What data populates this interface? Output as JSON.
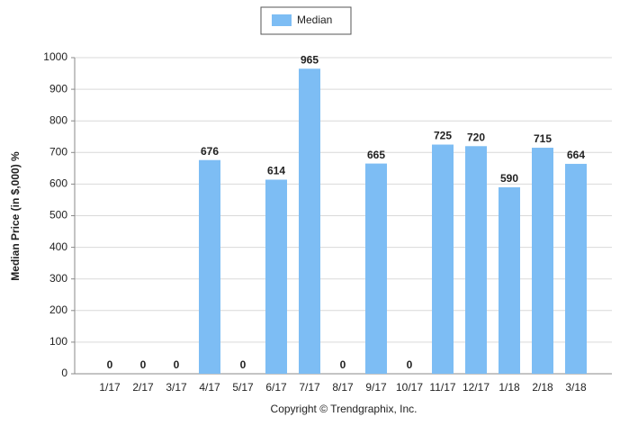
{
  "chart_data": {
    "type": "bar",
    "y_label": "Median Price (in $,000) %",
    "footer": "Copyright © Trendgraphix, Inc.",
    "categories": [
      "1/17",
      "2/17",
      "3/17",
      "4/17",
      "5/17",
      "6/17",
      "7/17",
      "8/17",
      "9/17",
      "10/17",
      "11/17",
      "12/17",
      "1/18",
      "2/18",
      "3/18"
    ],
    "series": [
      {
        "name": "Median",
        "color": "#7dbdf4",
        "values": [
          0,
          0,
          0,
          676,
          0,
          614,
          965,
          0,
          665,
          0,
          725,
          720,
          590,
          715,
          664
        ]
      }
    ],
    "ylim": [
      0,
      1000
    ],
    "yticks": [
      0,
      100,
      200,
      300,
      400,
      500,
      600,
      700,
      800,
      900,
      1000
    ],
    "grid": true
  }
}
